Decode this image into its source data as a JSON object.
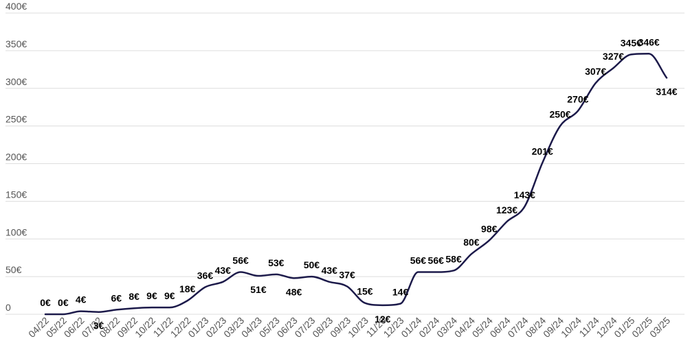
{
  "chart_data": {
    "type": "line",
    "title": "",
    "xlabel": "",
    "ylabel": "",
    "ylim": [
      0,
      400
    ],
    "yticks": [
      0,
      50,
      100,
      150,
      200,
      250,
      300,
      350,
      400
    ],
    "ytick_labels": [
      "0",
      "50€",
      "100€",
      "150€",
      "200€",
      "250€",
      "300€",
      "350€",
      "400€"
    ],
    "grid": true,
    "legend": "none",
    "line_color": "#1c1a4a",
    "categories": [
      "04/22",
      "05/22",
      "06/22",
      "07/22",
      "08/22",
      "09/22",
      "10/22",
      "11/22",
      "12/22",
      "01/23",
      "02/23",
      "03/23",
      "04/23",
      "05/23",
      "06/23",
      "07/23",
      "08/23",
      "09/23",
      "10/23",
      "11/23",
      "12/23",
      "01/24",
      "02/24",
      "03/24",
      "04/24",
      "05/24",
      "06/24",
      "07/24",
      "08/24",
      "09/24",
      "10/24",
      "11/24",
      "12/24",
      "01/25",
      "02/25",
      "03/25"
    ],
    "series": [
      {
        "values": [
          0,
          0,
          4,
          3,
          6,
          8,
          9,
          9,
          18,
          36,
          43,
          56,
          51,
          53,
          48,
          50,
          43,
          37,
          15,
          12,
          14,
          56,
          56,
          58,
          80,
          98,
          123,
          143,
          201,
          250,
          270,
          307,
          327,
          345,
          346,
          314
        ],
        "labels": [
          "0€",
          "0€",
          "4€",
          "3€",
          "6€",
          "8€",
          "9€",
          "9€",
          "18€",
          "36€",
          "43€",
          "56€",
          "51€",
          "53€",
          "48€",
          "50€",
          "43€",
          "37€",
          "15€",
          "12€",
          "14€",
          "56€",
          "56€",
          "58€",
          "80€",
          "98€",
          "123€",
          "143€",
          "201€",
          "250€",
          "270€",
          "307€",
          "327€",
          "345€",
          "346€",
          "314€"
        ]
      }
    ]
  }
}
